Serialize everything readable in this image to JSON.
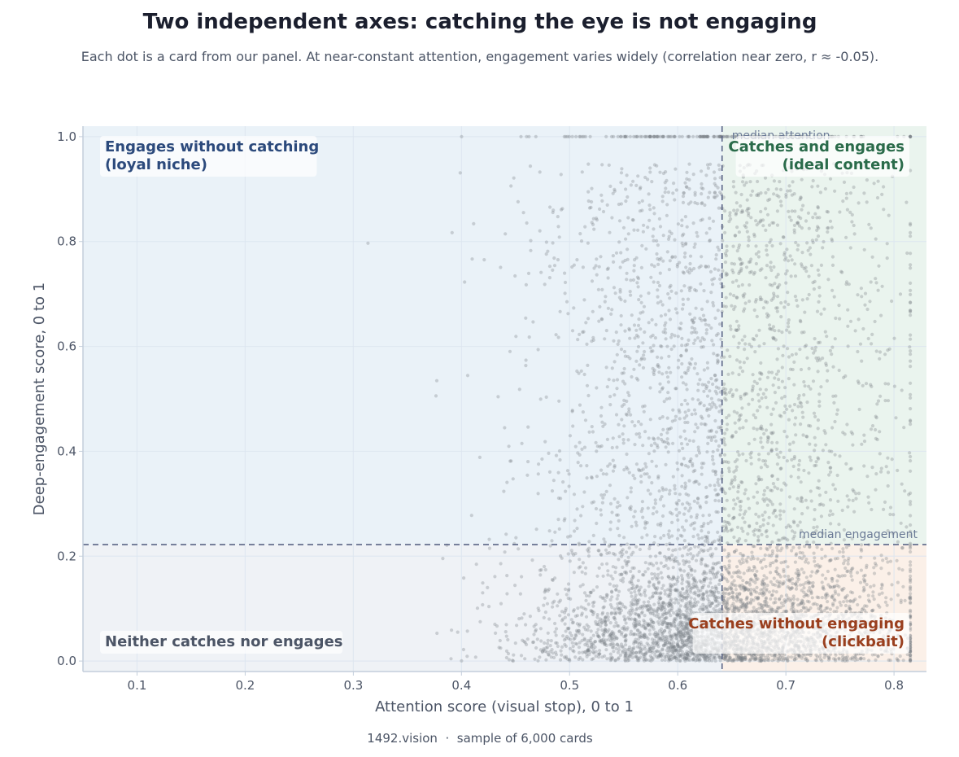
{
  "chart_data": {
    "type": "scatter",
    "title": "Two independent axes: catching the eye is not engaging",
    "subtitle": "Each dot is a card from our panel. At near-constant attention, engagement varies widely (correlation near zero, r ≈ -0.05).",
    "xlabel": "Attention score (visual stop), 0 to 1",
    "ylabel": "Deep-engagement score, 0 to 1",
    "xlim": [
      0.05,
      0.83
    ],
    "ylim": [
      -0.02,
      1.02
    ],
    "xticks": [
      "0.1",
      "0.2",
      "0.3",
      "0.4",
      "0.5",
      "0.6",
      "0.7",
      "0.8"
    ],
    "xtick_values": [
      0.1,
      0.2,
      0.3,
      0.4,
      0.5,
      0.6,
      0.7,
      0.8
    ],
    "yticks": [
      "0.0",
      "0.2",
      "0.4",
      "0.6",
      "0.8",
      "1.0"
    ],
    "ytick_values": [
      0.0,
      0.2,
      0.4,
      0.6,
      0.8,
      1.0
    ],
    "grid": true,
    "median_attention": 0.641,
    "median_engagement": 0.222,
    "median_attention_label": "median attention",
    "median_engagement_label": "median engagement",
    "quadrants": {
      "top_left": {
        "lines": [
          "Engages without catching",
          "(loyal niche)"
        ],
        "color": "#2c4a7c",
        "shade": "#eaf2f8"
      },
      "top_right": {
        "lines": [
          "Catches and engages",
          "(ideal content)"
        ],
        "color": "#2a6b4a",
        "shade": "#eaf4ee"
      },
      "bottom_left": {
        "lines": [
          "Neither catches nor engages"
        ],
        "color": "#4c5566",
        "shade": "#eff2f6"
      },
      "bottom_right": {
        "lines": [
          "Catches without engaging",
          "(clickbait)"
        ],
        "color": "#9a3f1e",
        "shade": "#fbf0e8"
      }
    },
    "point_color": "#7a7f87",
    "n_points": 6000,
    "distribution": {
      "attention_mean": 0.64,
      "attention_sd": 0.085,
      "engagement_shape": "right-skewed, many near 0, capped at 1.0"
    }
  },
  "footer": "1492.vision  ·  sample of 6,000 cards"
}
